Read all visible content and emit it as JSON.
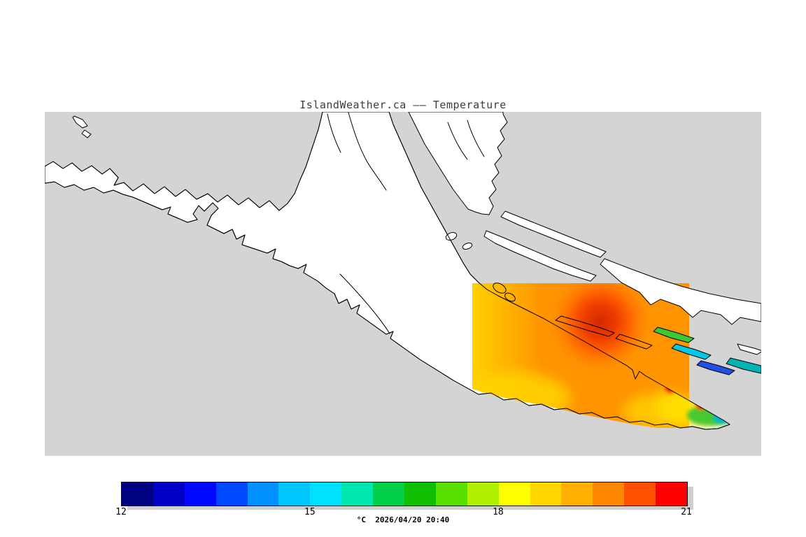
{
  "title": "IslandWeather.ca –– Temperature",
  "colorbar": {
    "ticks": [
      "12",
      "15",
      "18",
      "21"
    ],
    "caption": "°C  2026/04/20 20:40",
    "colors": [
      "#000082",
      "#0000c8",
      "#0008ff",
      "#0048ff",
      "#0090ff",
      "#00c8ff",
      "#00e0ff",
      "#00e8b0",
      "#00d048",
      "#10c000",
      "#58e000",
      "#b0f000",
      "#ffff00",
      "#ffd800",
      "#ffb000",
      "#ff8800",
      "#ff5000",
      "#ff0000"
    ]
  },
  "map": {
    "water_color": "#d4d4d4",
    "land_color": "#ffffff",
    "coast_color": "#000000",
    "overlay": {
      "base": "#ff9400",
      "warm_yellow": "#ffd400",
      "tip_yellow": "#ffe000",
      "hot_core": "#d42800",
      "hot_mid": "#ff6400",
      "hot_edge": "#ff9400",
      "spot_red": "#e01e00",
      "spot_halo": "#ff5000",
      "island_green": "#3cc832",
      "island_cyan": "#00c8e6",
      "island_blue": "#2050e6",
      "island_teal": "#00b4b4",
      "tip_cyan": "#00b4e6",
      "tip_blue": "#2050e6"
    }
  }
}
